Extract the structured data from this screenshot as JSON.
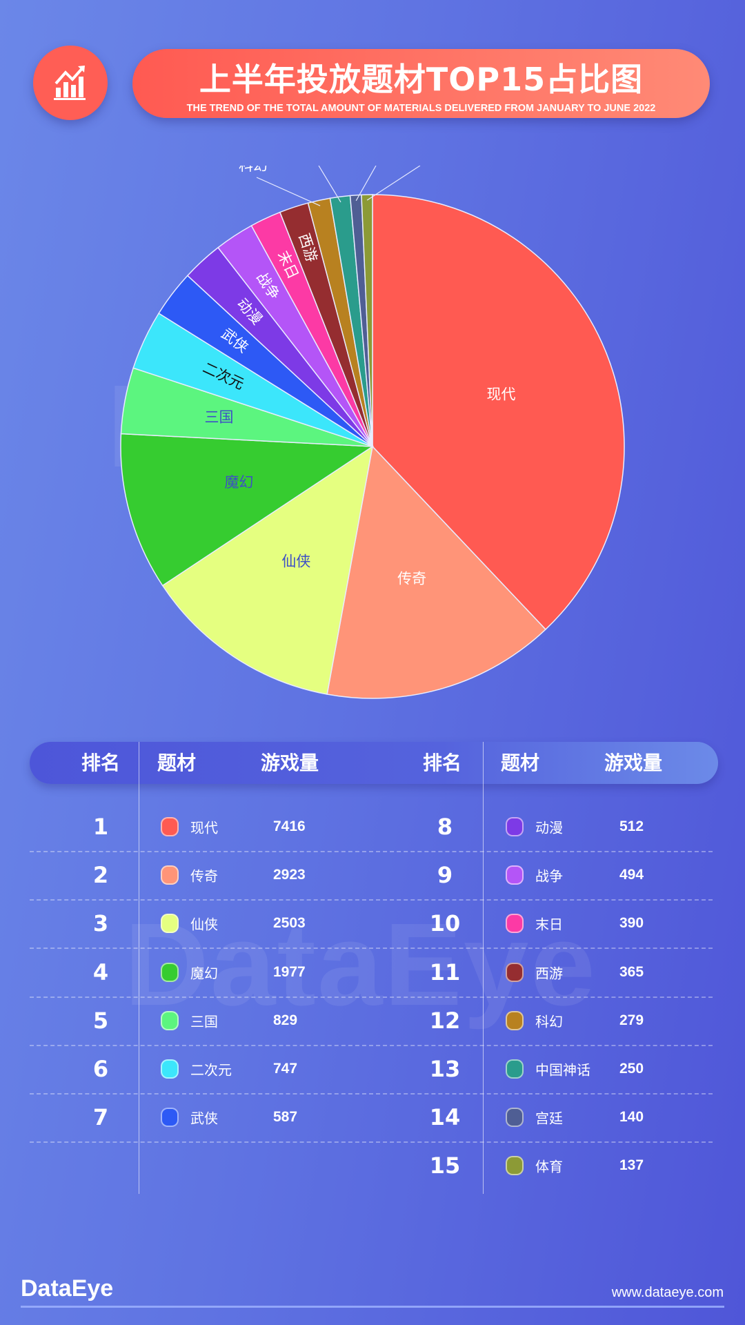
{
  "header": {
    "title": "上半年投放题材TOP15占比图",
    "subtitle": "THE TREND OF THE TOTAL AMOUNT OF MATERIALS DELIVERED FROM JANUARY TO JUNE 2022",
    "icon": "bar-chart-trend-icon"
  },
  "watermark": "DataEye",
  "chart_data": {
    "type": "pie",
    "title": "上半年投放题材TOP15占比图",
    "categories": [
      "现代",
      "传奇",
      "仙侠",
      "魔幻",
      "三国",
      "二次元",
      "武侠",
      "动漫",
      "战争",
      "末日",
      "西游",
      "科幻",
      "中国神话",
      "宫廷",
      "体育"
    ],
    "values": [
      7416,
      2923,
      2503,
      1977,
      829,
      747,
      587,
      512,
      494,
      390,
      365,
      279,
      250,
      140,
      137
    ],
    "colors": [
      "#ff5a52",
      "#ff9478",
      "#e5ff80",
      "#36cc30",
      "#5cf57f",
      "#3ce6fb",
      "#2d59f5",
      "#7d3ae6",
      "#b455f7",
      "#fc3aa5",
      "#952d30",
      "#b88120",
      "#2a9c8c",
      "#4f5e94",
      "#8c9a36"
    ],
    "label_colors": [
      "#ffffff",
      "#ffffff",
      "#3d4fc6",
      "#3d4fc6",
      "#3d4fc6",
      "#111111",
      "#ffffff",
      "#ffffff",
      "#ffffff",
      "#ffffff",
      "#ffffff",
      "#ffffff",
      "#ffffff",
      "#ffffff",
      "#ffffff"
    ]
  },
  "table": {
    "headers": {
      "rank": "排名",
      "topic": "题材",
      "count": "游戏量"
    },
    "left": [
      {
        "rank": "1",
        "name": "现代",
        "value": "7416",
        "color": "#ff5a52"
      },
      {
        "rank": "2",
        "name": "传奇",
        "value": "2923",
        "color": "#ff9478"
      },
      {
        "rank": "3",
        "name": "仙侠",
        "value": "2503",
        "color": "#e5ff80"
      },
      {
        "rank": "4",
        "name": "魔幻",
        "value": "1977",
        "color": "#36cc30"
      },
      {
        "rank": "5",
        "name": "三国",
        "value": "829",
        "color": "#5cf57f"
      },
      {
        "rank": "6",
        "name": "二次元",
        "value": "747",
        "color": "#3ce6fb"
      },
      {
        "rank": "7",
        "name": "武侠",
        "value": "587",
        "color": "#2d59f5"
      }
    ],
    "right": [
      {
        "rank": "8",
        "name": "动漫",
        "value": "512",
        "color": "#7d3ae6"
      },
      {
        "rank": "9",
        "name": "战争",
        "value": "494",
        "color": "#b455f7"
      },
      {
        "rank": "10",
        "name": "末日",
        "value": "390",
        "color": "#fc3aa5"
      },
      {
        "rank": "11",
        "name": "西游",
        "value": "365",
        "color": "#952d30"
      },
      {
        "rank": "12",
        "name": "科幻",
        "value": "279",
        "color": "#b88120"
      },
      {
        "rank": "13",
        "name": "中国神话",
        "value": "250",
        "color": "#2a9c8c"
      },
      {
        "rank": "14",
        "name": "宫廷",
        "value": "140",
        "color": "#4f5e94"
      },
      {
        "rank": "15",
        "name": "体育",
        "value": "137",
        "color": "#8c9a36"
      }
    ]
  },
  "footer": {
    "logo": "DataEye",
    "website": "www.dataeye.com"
  }
}
